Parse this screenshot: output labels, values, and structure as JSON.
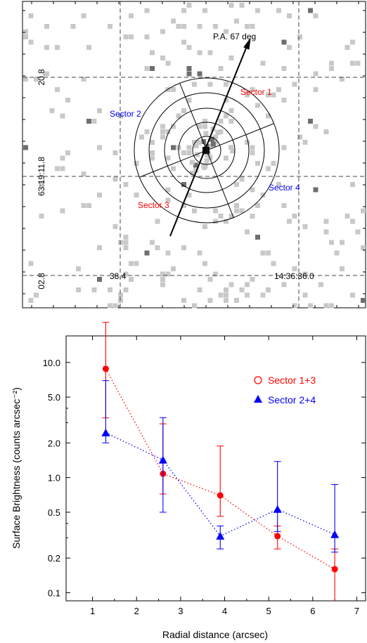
{
  "colors": {
    "sector13": "#ff0000",
    "sector24": "#0000ff",
    "pixel_light": "#c8c8c8",
    "pixel_dark": "#6e6e6e",
    "axis": "#000000"
  },
  "image_panel": {
    "arrow_label": "P.A. 67 deg",
    "sectors": [
      {
        "label": "Sector 1",
        "color": "#ff0000"
      },
      {
        "label": "Sector 2",
        "color": "#0000ff"
      },
      {
        "label": "Sector 3",
        "color": "#ff0000"
      },
      {
        "label": "Sector 4",
        "color": "#0000ff"
      }
    ],
    "dec_labels": [
      "20.8",
      "63:19:11.8",
      "02.8"
    ],
    "ra_labels": [
      "38.4",
      "14:36:36.0"
    ]
  },
  "chart_data": {
    "type": "scatter",
    "title": "",
    "xlabel": "Radial distance (arcsec)",
    "ylabel": "Surface Brightness (counts arcsec⁻²)",
    "xlim": [
      0.4,
      7.2
    ],
    "ylim": [
      0.085,
      17
    ],
    "yscale": "log",
    "grid": false,
    "legend_position": "top-right",
    "x_ticks": [
      1,
      2,
      3,
      4,
      5,
      6,
      7
    ],
    "x_tick_labels": [
      "1",
      "2",
      "3",
      "4",
      "5",
      "6",
      "7"
    ],
    "y_ticks": [
      0.1,
      0.2,
      0.5,
      1.0,
      2.0,
      5.0,
      10.0
    ],
    "y_tick_labels": [
      "0.1",
      "0.2",
      "0.5",
      "1.0",
      "2.0",
      "5.0",
      "10.0"
    ],
    "series": [
      {
        "name": "Sector 1+3",
        "marker": "circle",
        "color": "#ff0000",
        "x": [
          1.3,
          2.6,
          3.9,
          5.2,
          6.5
        ],
        "y": [
          8.8,
          1.08,
          0.7,
          0.31,
          0.16
        ],
        "err_low": [
          5.5,
          0.36,
          0.24,
          0.07,
          0.08
        ],
        "err_high": [
          13.5,
          1.85,
          1.18,
          0.07,
          0.08
        ]
      },
      {
        "name": "Sector 2+4",
        "marker": "triangle",
        "color": "#0000ff",
        "x": [
          1.3,
          2.6,
          3.9,
          5.2,
          6.5
        ],
        "y": [
          2.45,
          1.42,
          0.31,
          0.53,
          0.32
        ],
        "err_low": [
          0.45,
          0.92,
          0.07,
          0.19,
          0.095
        ],
        "err_high": [
          4.5,
          1.9,
          0.07,
          0.85,
          0.55
        ]
      }
    ]
  }
}
